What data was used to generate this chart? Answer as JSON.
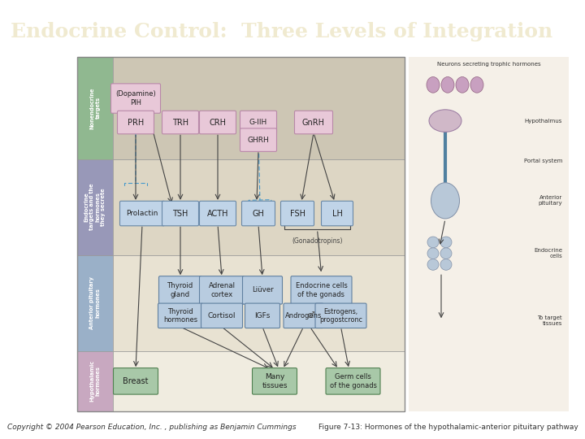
{
  "title": "Endocrine Control:  Three Levels of Integration",
  "title_bg_color": "#3d7f7c",
  "title_text_color": "#f0ead0",
  "title_fontsize": 18,
  "bg_color": "#f0ece4",
  "slide_bg": "#ffffff",
  "footer_left": "Copyright © 2004 Pearson Education, Inc. , publishing as Benjamin Cummings",
  "footer_right": "Figure 7-13: Hormones of the hypothalamic-anterior pituitary pathway",
  "footer_fontsize": 6.5,
  "footer_color": "#333333",
  "band_colors": [
    "#f0ece0",
    "#e8e2d2",
    "#ddd6c4",
    "#cdc6b4"
  ],
  "sidebar_colors": [
    "#c8a8c0",
    "#9ab0c8",
    "#9898b8",
    "#90b890"
  ],
  "sidebar_labels": [
    "Hypothalamic\nhormones",
    "Anterior pituitary\nhormones",
    "Endocrine\ntargets and the\nhormones\nthey secrete",
    "Nonendocrine\ntargets"
  ],
  "hypo_box_fill": "#e8c8d8",
  "hypo_box_edge": "#b888a8",
  "pit_box_fill": "#c0d4e8",
  "pit_box_edge": "#6888a8",
  "endo_box_fill": "#b8cce0",
  "endo_box_edge": "#6080a0",
  "nonendo_box_fill": "#a8c8a8",
  "nonendo_box_edge": "#508050",
  "arrow_color": "#444444",
  "dashed_arrow_color": "#4499cc",
  "anatomy_label_top": "Neurons secreting trophic hormones",
  "anatomy_labels": [
    "Hypothalmus",
    "Portal system",
    "Anterior\npituitary",
    "Endocrine\ncells",
    "To target\ntissues"
  ],
  "gonadotropins": "(Gonadotropins)"
}
